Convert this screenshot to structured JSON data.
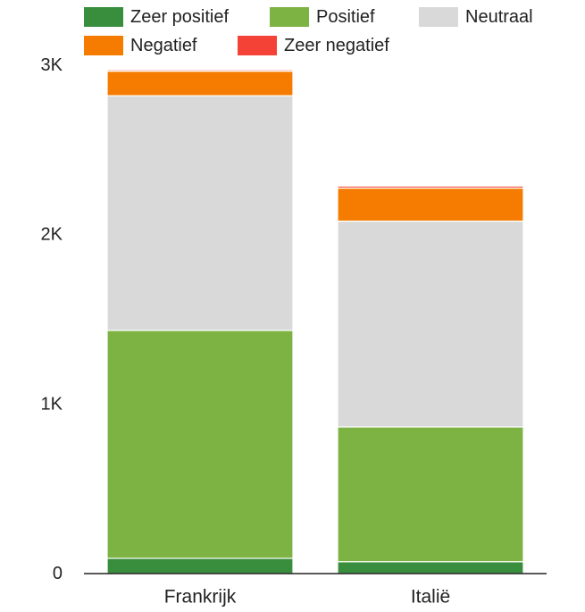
{
  "chart_data": {
    "type": "bar",
    "stacked": true,
    "categories": [
      "Frankrijk",
      "Italië"
    ],
    "series": [
      {
        "name": "Zeer positief",
        "color": "#388E3C",
        "values": [
          90,
          70
        ]
      },
      {
        "name": "Positief",
        "color": "#7CB342",
        "values": [
          1345,
          795
        ]
      },
      {
        "name": "Neutraal",
        "color": "#D9D9D9",
        "values": [
          1385,
          1215
        ]
      },
      {
        "name": "Negatief",
        "color": "#F57C00",
        "values": [
          145,
          195
        ]
      },
      {
        "name": "Zeer negatief",
        "color": "#F44336",
        "values": [
          8,
          12
        ]
      }
    ],
    "ylim": [
      0,
      3000
    ],
    "yticks": [
      0,
      1000,
      2000,
      3000
    ],
    "ytick_labels": [
      "0",
      "1K",
      "2K",
      "3K"
    ],
    "legend_position": "top",
    "title": "",
    "xlabel": "",
    "ylabel": ""
  }
}
